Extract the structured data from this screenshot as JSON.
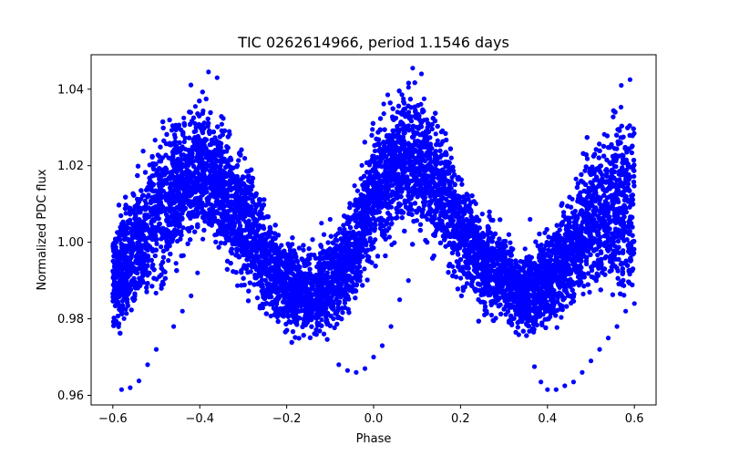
{
  "chart_data": {
    "type": "scatter",
    "title": "TIC 0262614966, period 1.1546 days",
    "xlabel": "Phase",
    "ylabel": "Normalized PDC flux",
    "xlim": [
      -0.65,
      0.65
    ],
    "ylim": [
      0.9575,
      1.049
    ],
    "x_ticks": [
      -0.6,
      -0.4,
      -0.2,
      0.0,
      0.2,
      0.4,
      0.6
    ],
    "x_tick_labels": [
      "−0.6",
      "−0.4",
      "−0.2",
      "0.0",
      "0.2",
      "0.4",
      "0.6"
    ],
    "y_ticks": [
      0.96,
      0.98,
      1.0,
      1.02,
      1.04
    ],
    "y_tick_labels": [
      "0.96",
      "0.98",
      "1.00",
      "1.02",
      "1.04"
    ],
    "grid": false,
    "legend": false,
    "marker_color": "#0000ff",
    "marker": "circle",
    "series_envelope": {
      "phase": [
        -0.6,
        -0.55,
        -0.5,
        -0.45,
        -0.4,
        -0.35,
        -0.3,
        -0.25,
        -0.2,
        -0.15,
        -0.1,
        -0.05,
        0.0,
        0.05,
        0.1,
        0.15,
        0.2,
        0.25,
        0.3,
        0.35,
        0.4,
        0.45,
        0.5,
        0.55,
        0.6
      ],
      "upper": [
        1.008,
        1.02,
        1.033,
        1.039,
        1.042,
        1.038,
        1.027,
        1.014,
        1.003,
        1.001,
        1.004,
        1.014,
        1.034,
        1.044,
        1.045,
        1.036,
        1.024,
        1.011,
        1.006,
        1.001,
        1.006,
        1.016,
        1.032,
        1.039,
        1.041
      ],
      "lower": [
        0.973,
        0.976,
        0.981,
        0.989,
        0.996,
        0.991,
        0.983,
        0.977,
        0.974,
        0.972,
        0.974,
        0.98,
        0.99,
        0.998,
        0.999,
        0.992,
        0.985,
        0.978,
        0.975,
        0.973,
        0.974,
        0.979,
        0.982,
        0.98,
        0.976
      ]
    },
    "outlier_points": [
      {
        "x": -0.58,
        "y": 0.9615
      },
      {
        "x": -0.56,
        "y": 0.962
      },
      {
        "x": -0.54,
        "y": 0.9638
      },
      {
        "x": -0.52,
        "y": 0.968
      },
      {
        "x": -0.5,
        "y": 0.972
      },
      {
        "x": -0.46,
        "y": 0.978
      },
      {
        "x": -0.44,
        "y": 0.982
      },
      {
        "x": -0.42,
        "y": 0.986
      },
      {
        "x": -0.405,
        "y": 0.992
      },
      {
        "x": -0.08,
        "y": 0.968
      },
      {
        "x": -0.06,
        "y": 0.9665
      },
      {
        "x": -0.04,
        "y": 0.966
      },
      {
        "x": -0.02,
        "y": 0.967
      },
      {
        "x": 0.0,
        "y": 0.97
      },
      {
        "x": 0.02,
        "y": 0.973
      },
      {
        "x": 0.04,
        "y": 0.978
      },
      {
        "x": 0.06,
        "y": 0.985
      },
      {
        "x": 0.08,
        "y": 0.99
      },
      {
        "x": 0.37,
        "y": 0.9675
      },
      {
        "x": 0.385,
        "y": 0.9635
      },
      {
        "x": 0.4,
        "y": 0.9615
      },
      {
        "x": 0.42,
        "y": 0.9615
      },
      {
        "x": 0.44,
        "y": 0.9625
      },
      {
        "x": 0.46,
        "y": 0.9635
      },
      {
        "x": 0.48,
        "y": 0.966
      },
      {
        "x": 0.5,
        "y": 0.969
      },
      {
        "x": 0.52,
        "y": 0.972
      },
      {
        "x": 0.54,
        "y": 0.975
      },
      {
        "x": 0.56,
        "y": 0.978
      },
      {
        "x": 0.58,
        "y": 0.982
      },
      {
        "x": -0.38,
        "y": 1.0445
      },
      {
        "x": -0.36,
        "y": 1.043
      },
      {
        "x": 0.09,
        "y": 1.0455
      },
      {
        "x": 0.11,
        "y": 1.044
      },
      {
        "x": 0.59,
        "y": 1.0425
      },
      {
        "x": 0.57,
        "y": 1.041
      },
      {
        "x": -0.12,
        "y": 1.005
      },
      {
        "x": -0.1,
        "y": 1.006
      },
      {
        "x": 0.36,
        "y": 1.006
      },
      {
        "x": 0.6,
        "y": 0.984
      }
    ]
  }
}
